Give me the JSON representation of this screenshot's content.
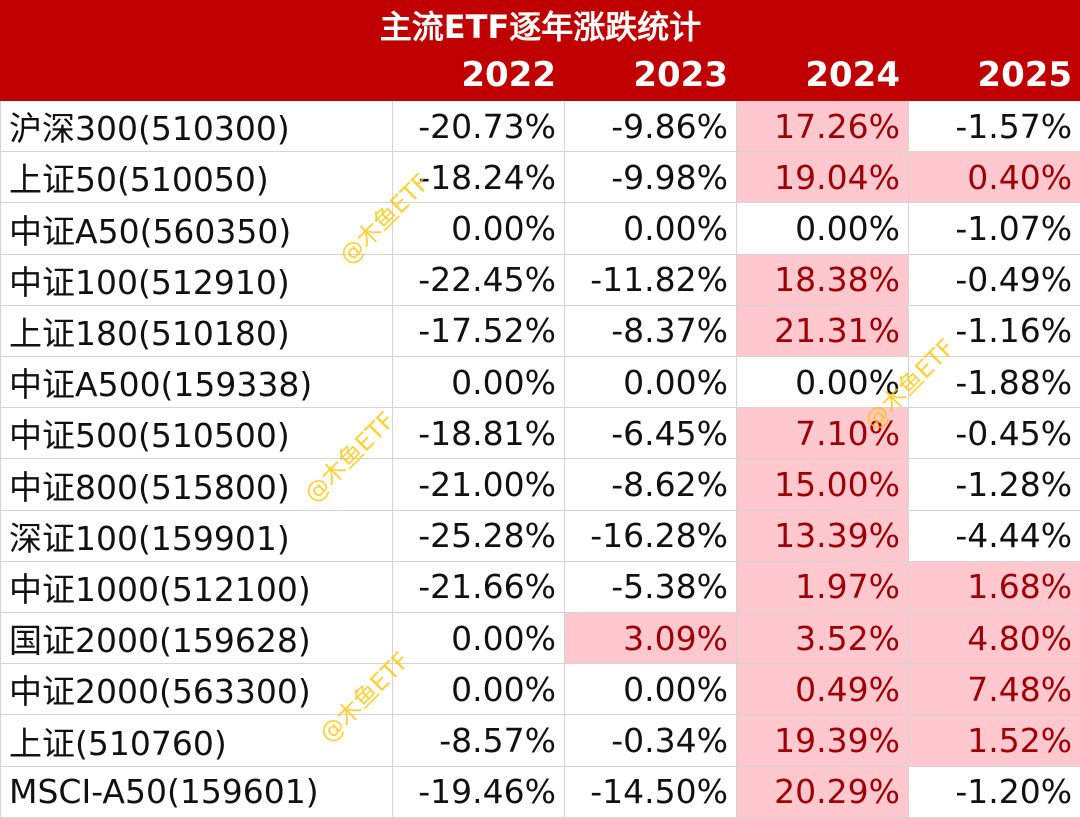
{
  "title": "主流ETF逐年涨跌统计",
  "years": [
    "2022",
    "2023",
    "2024",
    "2025"
  ],
  "rows": [
    {
      "name": "沪深300(510300)",
      "values": [
        "-20.73%",
        "-9.86%",
        "17.26%",
        "-1.57%"
      ],
      "positive": [
        false,
        false,
        true,
        false
      ]
    },
    {
      "name": "上证50(510050)",
      "values": [
        "-18.24%",
        "-9.98%",
        "19.04%",
        "0.40%"
      ],
      "positive": [
        false,
        false,
        true,
        true
      ]
    },
    {
      "name": "中证A50(560350)",
      "values": [
        "0.00%",
        "0.00%",
        "0.00%",
        "-1.07%"
      ],
      "positive": [
        false,
        false,
        false,
        false
      ]
    },
    {
      "name": "中证100(512910)",
      "values": [
        "-22.45%",
        "-11.82%",
        "18.38%",
        "-0.49%"
      ],
      "positive": [
        false,
        false,
        true,
        false
      ]
    },
    {
      "name": "上证180(510180)",
      "values": [
        "-17.52%",
        "-8.37%",
        "21.31%",
        "-1.16%"
      ],
      "positive": [
        false,
        false,
        true,
        false
      ]
    },
    {
      "name": "中证A500(159338)",
      "values": [
        "0.00%",
        "0.00%",
        "0.00%",
        "-1.88%"
      ],
      "positive": [
        false,
        false,
        false,
        false
      ]
    },
    {
      "name": "中证500(510500)",
      "values": [
        "-18.81%",
        "-6.45%",
        "7.10%",
        "-0.45%"
      ],
      "positive": [
        false,
        false,
        true,
        false
      ]
    },
    {
      "name": "中证800(515800)",
      "values": [
        "-21.00%",
        "-8.62%",
        "15.00%",
        "-1.28%"
      ],
      "positive": [
        false,
        false,
        true,
        false
      ]
    },
    {
      "name": "深证100(159901)",
      "values": [
        "-25.28%",
        "-16.28%",
        "13.39%",
        "-4.44%"
      ],
      "positive": [
        false,
        false,
        true,
        false
      ]
    },
    {
      "name": "中证1000(512100)",
      "values": [
        "-21.66%",
        "-5.38%",
        "1.97%",
        "1.68%"
      ],
      "positive": [
        false,
        false,
        true,
        true
      ]
    },
    {
      "name": "国证2000(159628)",
      "values": [
        "0.00%",
        "3.09%",
        "3.52%",
        "4.80%"
      ],
      "positive": [
        false,
        true,
        true,
        true
      ]
    },
    {
      "name": "中证2000(563300)",
      "values": [
        "0.00%",
        "0.00%",
        "0.49%",
        "7.48%"
      ],
      "positive": [
        false,
        false,
        true,
        true
      ]
    },
    {
      "name": "上证(510760)",
      "values": [
        "-8.57%",
        "-0.34%",
        "19.39%",
        "1.52%"
      ],
      "positive": [
        false,
        false,
        true,
        true
      ]
    },
    {
      "name": "MSCI-A50(159601)",
      "values": [
        "-19.46%",
        "-14.50%",
        "20.29%",
        "-1.20%"
      ],
      "positive": [
        false,
        false,
        true,
        false
      ]
    }
  ],
  "watermark": "@木鱼ETF",
  "colors": {
    "header_bg": "#c00000",
    "header_text": "#ffffff",
    "positive_bg": "#ffc7ce",
    "positive_text": "#9c0006",
    "negative_text": "#111111",
    "watermark": "#ffc400"
  }
}
